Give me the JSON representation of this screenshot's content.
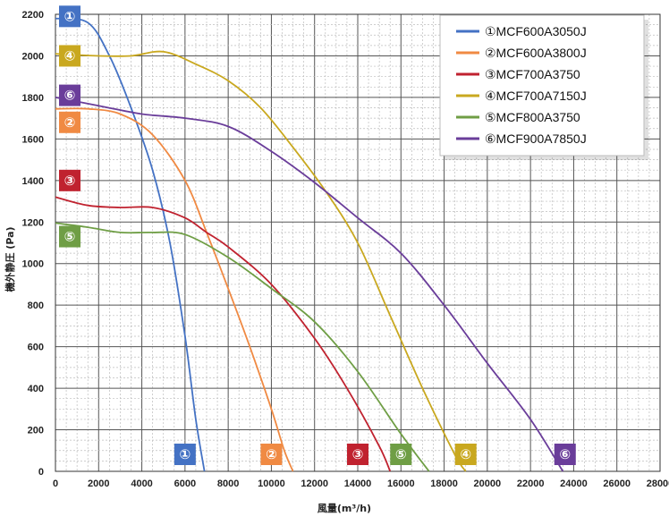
{
  "chart_data": {
    "type": "line",
    "title": "",
    "xlabel": "風量(m³/h)",
    "ylabel": "機外静圧 (Pa)",
    "xlim": [
      0,
      28000
    ],
    "ylim": [
      0,
      2200
    ],
    "xticks": [
      0,
      2000,
      4000,
      6000,
      8000,
      10000,
      12000,
      14000,
      16000,
      18000,
      20000,
      22000,
      24000,
      26000,
      28000
    ],
    "yticks": [
      0,
      200,
      400,
      600,
      800,
      1000,
      1200,
      1400,
      1600,
      1800,
      2000,
      2200
    ],
    "xtick_labels": [
      "0",
      "2000",
      "4000",
      "6000",
      "8000",
      "10000",
      "12000",
      "14000",
      "16000",
      "18000",
      "20000",
      "22000",
      "24000",
      "26000",
      "28000"
    ],
    "ytick_labels": [
      "0",
      "200",
      "400",
      "600",
      "800",
      "1000",
      "1200",
      "1400",
      "1600",
      "1800",
      "2000",
      "2200"
    ],
    "grid": true,
    "legend_position": "top-right",
    "series": [
      {
        "name": "①MCF600A3050J",
        "badge": "①",
        "color": "#4472c4",
        "x": [
          0,
          1500,
          2500,
          3500,
          4500,
          5300,
          6000,
          6500,
          6900
        ],
        "y": [
          2180,
          2160,
          2000,
          1750,
          1450,
          1100,
          650,
          250,
          0
        ],
        "left_badge_y": 2190,
        "bottom_badge_x": 6000
      },
      {
        "name": "②MCF600A3800J",
        "badge": "②",
        "color": "#f08a43",
        "x": [
          0,
          1500,
          3000,
          4500,
          6000,
          7000,
          8000,
          9000,
          10000,
          10600,
          11000
        ],
        "y": [
          1745,
          1745,
          1720,
          1620,
          1400,
          1150,
          880,
          600,
          300,
          100,
          0
        ],
        "left_badge_y": 1680,
        "bottom_badge_x": 10000
      },
      {
        "name": "③MCF700A3750",
        "badge": "③",
        "color": "#c0222f",
        "x": [
          0,
          1500,
          3000,
          4500,
          6000,
          7000,
          8000,
          10000,
          12000,
          13500,
          15000,
          15500
        ],
        "y": [
          1320,
          1280,
          1270,
          1270,
          1220,
          1150,
          1080,
          900,
          640,
          400,
          120,
          0
        ],
        "left_badge_y": 1400,
        "bottom_badge_x": 14000
      },
      {
        "name": "④MCF700A7150J",
        "badge": "④",
        "color": "#c9a81f",
        "x": [
          0,
          2000,
          3500,
          5000,
          6500,
          8000,
          9500,
          11000,
          12500,
          14000,
          15500,
          17000,
          18500,
          19000
        ],
        "y": [
          2010,
          2000,
          2000,
          2020,
          1960,
          1880,
          1750,
          1560,
          1350,
          1100,
          750,
          400,
          80,
          0
        ],
        "left_badge_y": 2000,
        "bottom_badge_x": 19000
      },
      {
        "name": "⑤MCF800A3750",
        "badge": "⑤",
        "color": "#6f9e45",
        "x": [
          0,
          1500,
          3000,
          4500,
          6000,
          8000,
          10000,
          12000,
          14000,
          16000,
          17300
        ],
        "y": [
          1195,
          1175,
          1150,
          1150,
          1140,
          1030,
          880,
          720,
          480,
          180,
          0
        ],
        "left_badge_y": 1130,
        "bottom_badge_x": 16000
      },
      {
        "name": "⑥MCF900A7850J",
        "badge": "⑥",
        "color": "#6a3d9a",
        "x": [
          0,
          2000,
          4000,
          6000,
          8000,
          10000,
          12000,
          14000,
          16000,
          18000,
          20000,
          22000,
          23500
        ],
        "y": [
          1800,
          1760,
          1720,
          1700,
          1660,
          1540,
          1390,
          1220,
          1050,
          800,
          520,
          250,
          0
        ],
        "left_badge_y": 1810,
        "bottom_badge_x": 23600
      }
    ]
  }
}
